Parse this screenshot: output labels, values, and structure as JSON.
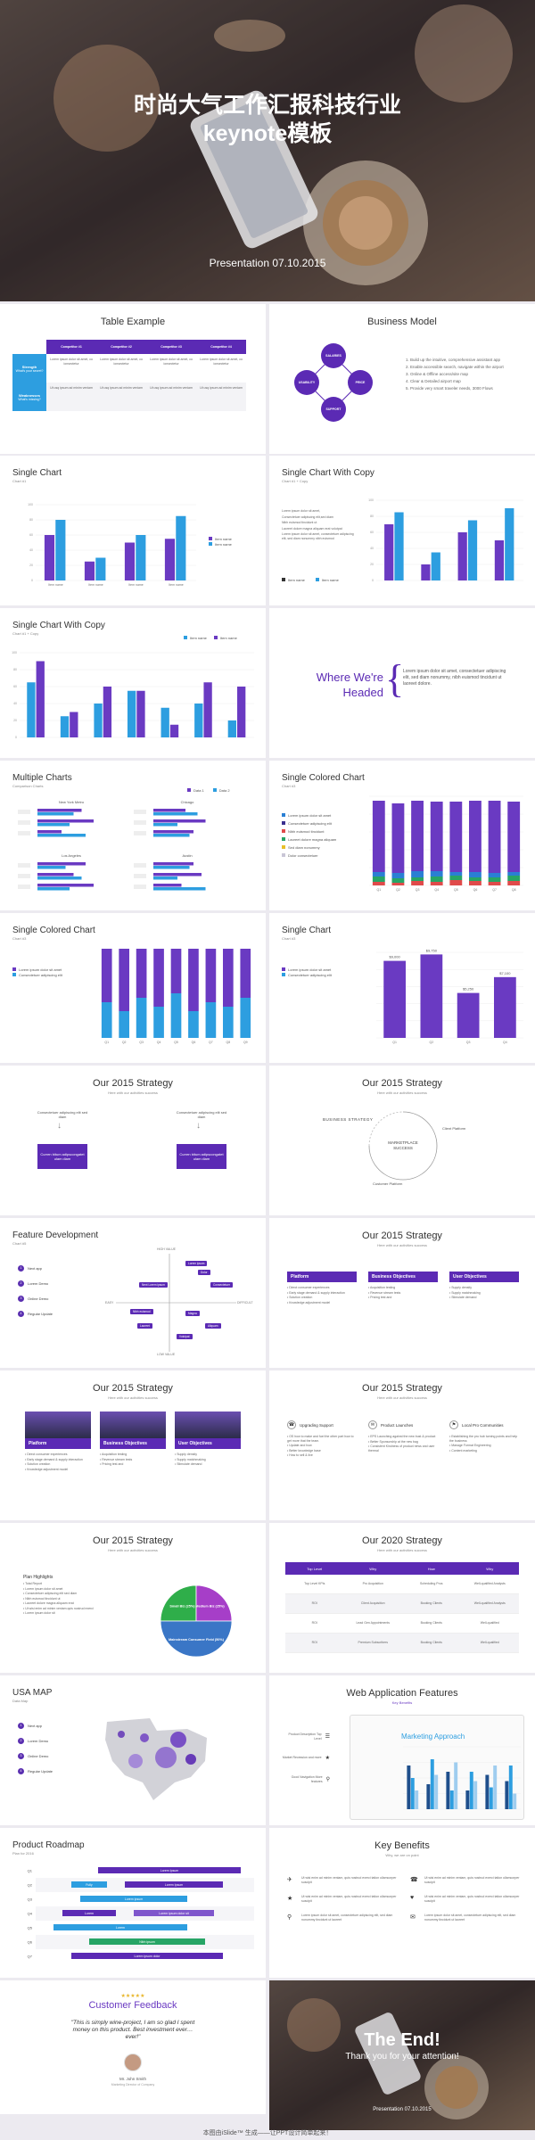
{
  "cover": {
    "title_line1": "时尚大气工作汇报科技行业",
    "title_line2": "keynote模板",
    "presentation_label": "Presentation 07.10.2015"
  },
  "table_example": {
    "title": "Table Example",
    "headers": [
      "Competitor #1",
      "Competitor #2",
      "Competitor #3",
      "Competitor #4"
    ],
    "row_labels": [
      {
        "main": "Strength",
        "sub": "What's your secret?"
      },
      {
        "main": "Weaknesses",
        "sub": "What's missing?"
      }
    ],
    "cells": [
      [
        "Lorem ipsum dolor sit amet, co ionsectetur",
        "Lorem ipsum dolor sit amet, co ionsectetur",
        "Lorem ipsum dolor sit amet, co ionsectetur",
        "Lorem ipsum dolor sit amet, co ionsectetur"
      ],
      [
        "Ut usq ipsum ad minim veniam",
        "Ut usq ipsum ad minim veniam",
        "Ut usq ipsum ad minim veniam",
        "Ut usq ipsum ad minim veniam"
      ]
    ]
  },
  "business_model": {
    "title": "Business Model",
    "nodes": [
      "SALARIES",
      "PRICE",
      "SUPPORT",
      "USABILITY"
    ],
    "list": [
      "Build up the intuitive, comprehensive assistant app",
      "Enable accessible search, navigate within the airport",
      "Online & Offline access/site map",
      "Clear & Detailed airport map",
      "Provide very smart traveler needs, 3000 Flows"
    ]
  },
  "single_chart": {
    "title": "Single Chart",
    "subtitle": "Chart #1",
    "legend": [
      "Item name",
      "Item name"
    ],
    "categories": [
      "Item name",
      "Item name",
      "Item name",
      "Item name"
    ],
    "chart_data": {
      "type": "bar",
      "categories": [
        "1",
        "2",
        "3",
        "4"
      ],
      "series": [
        {
          "name": "Item name",
          "values": [
            60,
            25,
            50,
            55
          ]
        },
        {
          "name": "Item name",
          "values": [
            80,
            30,
            60,
            85
          ]
        }
      ],
      "ylim": [
        0,
        100
      ]
    }
  },
  "single_chart_copy": {
    "title": "Single Chart With Copy",
    "subtitle": "Chart #1 + Copy",
    "text": [
      "Lorem ipsum dolor sit amet,",
      "Consectetuer adipiscing elit,sed diam",
      "Nibh euismod tincidunt ut",
      "Laoreet dolore magna aliquam erat volutpat",
      "Lorem ipsum dolor sit amet, consectetuer adipiscing elit, sed diam nonummy nibh euismod"
    ],
    "legend": [
      "Item name",
      "Item name"
    ],
    "chart_data": {
      "type": "bar",
      "categories": [
        "1",
        "2",
        "3",
        "4"
      ],
      "series": [
        {
          "name": "Item name",
          "values": [
            70,
            20,
            60,
            50
          ]
        },
        {
          "name": "Item name",
          "values": [
            85,
            35,
            75,
            90
          ]
        }
      ],
      "ylim": [
        0,
        100
      ]
    }
  },
  "single_chart_copy2": {
    "title": "Single Chart With Copy",
    "subtitle": "Chart #1 + Copy",
    "legend": [
      "Item name",
      "Item name"
    ],
    "chart_data": {
      "type": "bar",
      "categories": [
        "1",
        "2",
        "3",
        "4",
        "5",
        "6",
        "7"
      ],
      "series": [
        {
          "name": "Item name",
          "values": [
            65,
            25,
            40,
            55,
            35,
            40,
            20
          ]
        },
        {
          "name": "Item name",
          "values": [
            90,
            30,
            60,
            55,
            15,
            65,
            60
          ]
        }
      ],
      "ylim": [
        0,
        100
      ]
    }
  },
  "where_headed": {
    "title_line1": "Where We're",
    "title_line2": "Headed",
    "paragraph": "Lorem ipsum dolor sit amet, consectetuer adipiscing elit, sed diam nonummy, nibh euismod tincidunt ut laoreet dolore."
  },
  "multiple_charts": {
    "title": "Multiple Charts",
    "subtitle": "Comparison Charts",
    "legend": [
      "Data 1",
      "Data 2"
    ],
    "cities": [
      "New York Metro",
      "Chicago",
      "Los Angeles",
      "Austin"
    ],
    "charts": [
      {
        "a": [
          55,
          70,
          30
        ],
        "b": [
          45,
          40,
          60
        ]
      },
      {
        "a": [
          40,
          65,
          50
        ],
        "b": [
          55,
          30,
          45
        ]
      },
      {
        "a": [
          60,
          45,
          70
        ],
        "b": [
          35,
          55,
          40
        ]
      },
      {
        "a": [
          50,
          60,
          35
        ],
        "b": [
          45,
          30,
          65
        ]
      }
    ]
  },
  "colored_chart1": {
    "title": "Single Colored Chart",
    "subtitle": "Chart #3",
    "legend": [
      {
        "label": "Lorem ipsum dolor sit amet",
        "color": "#2a7fd4"
      },
      {
        "label": "Consectetuer adipiscing elit",
        "color": "#3a2f8f"
      },
      {
        "label": "Nibh euismod tincidunt",
        "color": "#e04a4a"
      },
      {
        "label": "Laoreet dolore magna aliquam",
        "color": "#27a566"
      },
      {
        "label": "Sed diam nonummy",
        "color": "#e8c02a"
      },
      {
        "label": "Dolor consectetuer",
        "color": "#c9c6d6"
      }
    ],
    "chart_data": {
      "type": "bar",
      "categories": [
        "Q1",
        "Q2",
        "Q3",
        "Q4",
        "Q5",
        "Q6",
        "Q7",
        "Q8"
      ],
      "stacks": [
        [
          4,
          6,
          5,
          80
        ],
        [
          3,
          5,
          6,
          78
        ],
        [
          5,
          4,
          7,
          79
        ],
        [
          4,
          6,
          6,
          78
        ],
        [
          6,
          5,
          4,
          79
        ],
        [
          5,
          4,
          6,
          80
        ],
        [
          4,
          5,
          5,
          81
        ],
        [
          5,
          6,
          4,
          79
        ]
      ],
      "ylim": [
        0,
        100
      ]
    }
  },
  "colored_chart2": {
    "title": "Single Colored Chart",
    "subtitle": "Chart #3",
    "legend": [
      "Lorem ipsum dolor sit amet",
      "Consectetuer adipiscing elit"
    ],
    "chart_data": {
      "type": "bar",
      "categories": [
        "Q1",
        "Q2",
        "Q3",
        "Q4",
        "Q5",
        "Q6",
        "Q7",
        "Q8",
        "Q9"
      ],
      "series": [
        {
          "name": "Lorem ipsum dolor sit amet",
          "values": [
            60,
            70,
            55,
            65,
            50,
            70,
            60,
            65,
            55
          ]
        },
        {
          "name": "Consectetuer adipiscing elit",
          "values": [
            40,
            30,
            45,
            35,
            50,
            30,
            40,
            35,
            45
          ]
        }
      ],
      "ylim": [
        0,
        100
      ]
    }
  },
  "single_chart2": {
    "title": "Single Chart",
    "subtitle": "Chart #3",
    "legend": [
      "Lorem ipsum dolor sit amet",
      "Consectetuer adipiscing elit"
    ],
    "chart_data": {
      "type": "bar",
      "categories": [
        "Q1",
        "Q2",
        "Q3",
        "Q4"
      ],
      "values": [
        9000,
        9750,
        5250,
        7100
      ],
      "labels": [
        "$9,000",
        "$9,750",
        "$5,250",
        "$7,100"
      ],
      "ylim": [
        0,
        10000
      ]
    }
  },
  "strategy_arrows": {
    "title": "Our 2015 Strategy",
    "subtitle": "Here with our activities success",
    "note": "Consectetuer adipiscing elit sed diam",
    "box_text": "Curren bitum adipscongatet ulam diam"
  },
  "strategy_cycle": {
    "title": "Our 2015 Strategy",
    "subtitle": "Here with our activities success",
    "left_label": "BUSINESS   STRATEGY",
    "center_line1": "MARKETPLACE",
    "center_line2": "SUCCESS",
    "right_label": "Client Platform",
    "bottom_label": "Customer Platform"
  },
  "feature_dev": {
    "title": "Feature Development",
    "subtitle": "Chart #5",
    "items": [
      "Item 1",
      "Item 2",
      "Item 3",
      "Item 4"
    ],
    "item_labels": [
      "Next app",
      "Lorem Demo",
      "Online Demo",
      "Regular Update"
    ],
    "axis": [
      "HIGH VALUE",
      "LOW VALUE",
      "EASY",
      "DIFFICULT"
    ],
    "tags": [
      "Lorem ipsum",
      "Dolor",
      "Consectetuer",
      "Next Lorem ipsum",
      "Nibh euismod",
      "Laoreet",
      "Magna",
      "Aliquam",
      "Volutpat"
    ]
  },
  "strategy_columns": {
    "title": "Our 2015 Strategy",
    "subtitle": "Here with our activities success",
    "columns": [
      {
        "head": "Platform",
        "items": [
          "Direct consumer experiences",
          "Early stage demand & supply interaction",
          "Solution creation",
          "Knowledge adjustment model"
        ]
      },
      {
        "head": "Business Objectives",
        "items": [
          "Acquisition testing",
          "Revenue stream tests",
          "Pricing test and"
        ]
      },
      {
        "head": "User Objectives",
        "items": [
          "Supply density",
          "Supply matchmaking",
          "Stimulate demand"
        ]
      }
    ]
  },
  "strategy_images": {
    "title": "Our 2015 Strategy",
    "subtitle": "Here with our activities success",
    "columns": [
      {
        "head": "Platform",
        "items": [
          "Direct consumer experiences",
          "Early stage demand & supply interaction",
          "Solution creation",
          "Knowledge adjustment model"
        ]
      },
      {
        "head": "Business Objectives",
        "items": [
          "Acquisition testing",
          "Revenue stream tests",
          "Pricing test and"
        ]
      },
      {
        "head": "User Objectives",
        "items": [
          "Supply density",
          "Supply matchmaking",
          "Stimulate demand"
        ]
      }
    ]
  },
  "strategy_icons": {
    "title": "Our 2015 Strategy",
    "subtitle": "Here with our activities success",
    "columns": [
      {
        "head": "Upgrading Support",
        "items": [
          "OS how to make and fuel the other part how to get more that the team.",
          "Update and how",
          "Better knowledge base",
          "How to sell & live"
        ]
      },
      {
        "head": "Product Launches",
        "items": [
          "EPS Launching against the new bust & product",
          "Better Sponsorship at the new bag",
          "Consistent Kindness of product news and user thermal"
        ]
      },
      {
        "head": "Local Pro Communities",
        "items": [
          "Establishing the pro hub turning points and help the business",
          "Manage Format Engineering",
          "Content marketing"
        ]
      }
    ]
  },
  "strategy_pie": {
    "title": "Our 2015 Strategy",
    "subtitle": "Here with our activities success",
    "list_title": "Plan Highlights",
    "list": [
      "Total Report",
      "Lorem ipsum dolor sit amet",
      "Consectetuer adipiscing elit sed diam",
      "Nibh euismod tincidunt ut",
      "Laoreet dolore magna aliquam erat",
      "Ut wisi enim ad minim veniam quis nostrud exerci",
      "Lorem ipsum dolor sit"
    ],
    "chart_data": {
      "type": "pie",
      "slices": [
        {
          "label": "Small Biz (25%)",
          "value": 25
        },
        {
          "label": "Medium Biz (25%)",
          "value": 25
        },
        {
          "label": "Mainstream Consumer Field (50%)",
          "value": 50
        }
      ]
    }
  },
  "strategy_2020": {
    "title": "Our 2020 Strategy",
    "subtitle": "Here with our activities success",
    "headers": [
      "Top Level",
      "Why",
      "How",
      "Why"
    ],
    "rows": [
      [
        "Top Level KPIs",
        "Pro Acquisition",
        "Scheduling Pros",
        "Well-qualified Analysts"
      ],
      [
        "ROI",
        "Client Acquisition",
        "Booking Clients",
        "Well-qualified Analysts"
      ],
      [
        "ROI",
        "Lead Gen Appointments",
        "Booking Clients",
        "Well-qualified"
      ],
      [
        "ROI",
        "Premium Subscribers",
        "Booking Clients",
        "Well-qualified"
      ]
    ]
  },
  "usa_map": {
    "title": "USA MAP",
    "subtitle": "Data Map",
    "items": [
      "Next app",
      "Lorem Demo",
      "Online Demo",
      "Regular Update"
    ]
  },
  "web_features": {
    "title": "Web Application Features",
    "subtitle": "Key Benefits",
    "features": [
      "Product Description Top Level",
      "Market Recession and more",
      "Good Navigation More features"
    ],
    "chart_title": "Marketing Approach",
    "chart_data": {
      "type": "bar",
      "categories": [
        "1",
        "2",
        "3",
        "4",
        "5",
        "6"
      ],
      "series": [
        {
          "name": "A",
          "values": [
            70,
            40,
            60,
            30,
            55,
            45
          ]
        },
        {
          "name": "B",
          "values": [
            50,
            80,
            30,
            60,
            35,
            70
          ]
        },
        {
          "name": "C",
          "values": [
            30,
            55,
            75,
            45,
            70,
            25
          ]
        }
      ],
      "ylim": [
        0,
        100
      ]
    }
  },
  "roadmap": {
    "title": "Product Roadmap",
    "subtitle": "Plan for 2016",
    "row_labels": [
      "Q1",
      "Q2",
      "Q3",
      "Q4",
      "Q5",
      "Q6",
      "Q7"
    ],
    "bars": [
      "Lorem Ipsum",
      "Lorem Ipsum",
      "Fully",
      "Lorem ipsum",
      "Lorem",
      "Lorem ipsum dolor sit",
      "Lorem",
      "Nibh ipsum",
      "Lorem ipsum dolor"
    ]
  },
  "key_benefits": {
    "title": "Key Benefits",
    "subtitle": "Why, we are on point",
    "items": [
      "Ut wisi enim ad minim veniam, quis nostrud exerci tation ullamcorper suscipit",
      "Ut wisi enim ad minim veniam, quis nostrud exerci tation ullamcorper suscipit",
      "Ut wisi enim ad minim veniam, quis nostrud exerci tation ullamcorper suscipit",
      "Ut wisi enim ad minim veniam, quis nostrud exerci tation ullamcorper suscipit",
      "Lorem ipsum dolor sit amet, consectetuer adipiscing elit, sed diam nonummy tincidunt ut laoreet",
      "Lorem ipsum dolor sit amet, consectetuer adipiscing elit, sed diam nonummy tincidunt ut laoreet"
    ]
  },
  "feedback": {
    "title": "Customer Feedback",
    "stars": "★★★★★",
    "quote": "\"This is simply wine-project, I am so glad I spent money on this product. Best investment ever… ever!\"",
    "name": "Mr. John Smith",
    "role": "Marketing Director of Company"
  },
  "end": {
    "title": "The End!",
    "subtitle": "Thank you for your attention!",
    "presentation_label": "Presentation 07.10.2015"
  },
  "footer": {
    "text": "本图由iSlide™ 生成——让PPT设计简单起来！"
  },
  "colors": {
    "purple": "#6a3ac2",
    "blue": "#2d9ee0",
    "dark_purple": "#4b2194"
  }
}
